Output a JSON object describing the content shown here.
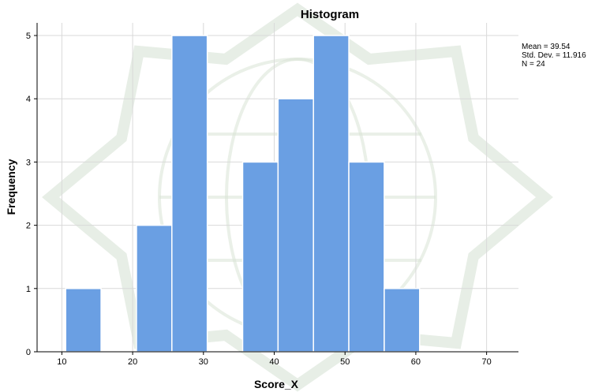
{
  "chart_data": {
    "type": "bar",
    "title": "Histogram",
    "xlabel": "Score_X",
    "ylabel": "Frequency",
    "bins": [
      {
        "start": 10.54,
        "end": 15.54,
        "value": 1
      },
      {
        "start": 15.54,
        "end": 20.54,
        "value": 0
      },
      {
        "start": 20.54,
        "end": 25.54,
        "value": 2
      },
      {
        "start": 25.54,
        "end": 30.54,
        "value": 5
      },
      {
        "start": 30.54,
        "end": 35.54,
        "value": 0
      },
      {
        "start": 35.54,
        "end": 40.54,
        "value": 3
      },
      {
        "start": 40.54,
        "end": 45.54,
        "value": 4
      },
      {
        "start": 45.54,
        "end": 50.54,
        "value": 5
      },
      {
        "start": 50.54,
        "end": 55.54,
        "value": 3
      },
      {
        "start": 55.54,
        "end": 60.54,
        "value": 1
      }
    ],
    "xlim": [
      6.5,
      74.5
    ],
    "ylim": [
      0,
      5.2
    ],
    "xticks": [
      10,
      20,
      30,
      40,
      50,
      60,
      70
    ],
    "yticks": [
      0,
      1,
      2,
      3,
      4,
      5
    ],
    "grid": true,
    "bar_color": "#6a9fe3",
    "legend_position": "right",
    "stats": [
      "Mean = 39.54",
      "Std. Dev. = 11.916",
      "N = 24"
    ]
  }
}
